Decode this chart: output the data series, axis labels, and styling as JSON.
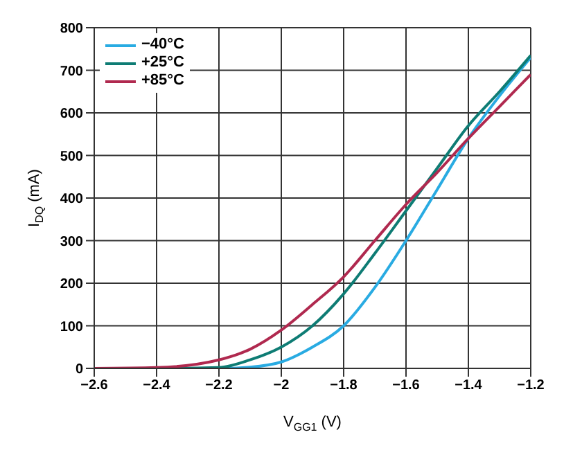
{
  "chart_data": {
    "type": "line",
    "xlabel": "V$_{GG1}$ (V)",
    "ylabel": "I$_{DQ}$ (mA)",
    "x": [
      -2.6,
      -2.4,
      -2.2,
      -2.1,
      -2.0,
      -1.9,
      -1.8,
      -1.7,
      -1.6,
      -1.5,
      -1.4,
      -1.3,
      -1.2
    ],
    "series": [
      {
        "name": "−40°C",
        "color": "#29abe2",
        "values": [
          0,
          0,
          0,
          3,
          15,
          50,
          100,
          190,
          300,
          420,
          540,
          640,
          730
        ]
      },
      {
        "name": "+25°C",
        "color": "#0e7c74",
        "values": [
          0,
          0,
          2,
          20,
          50,
          100,
          175,
          270,
          370,
          470,
          570,
          650,
          735
        ]
      },
      {
        "name": "+85°C",
        "color": "#b0294f",
        "values": [
          0,
          2,
          20,
          45,
          90,
          150,
          215,
          300,
          385,
          460,
          540,
          615,
          690
        ]
      }
    ],
    "xlim": [
      -2.6,
      -1.2
    ],
    "xticks": [
      -2.6,
      -2.4,
      -2.2,
      -2.0,
      -1.8,
      -1.6,
      -1.4,
      -1.2
    ],
    "ylim": [
      0,
      800
    ],
    "yticks": [
      0,
      100,
      200,
      300,
      400,
      500,
      600,
      700,
      800
    ],
    "grid": true,
    "legend": "top left",
    "marker": "none",
    "line_style": "solid"
  }
}
